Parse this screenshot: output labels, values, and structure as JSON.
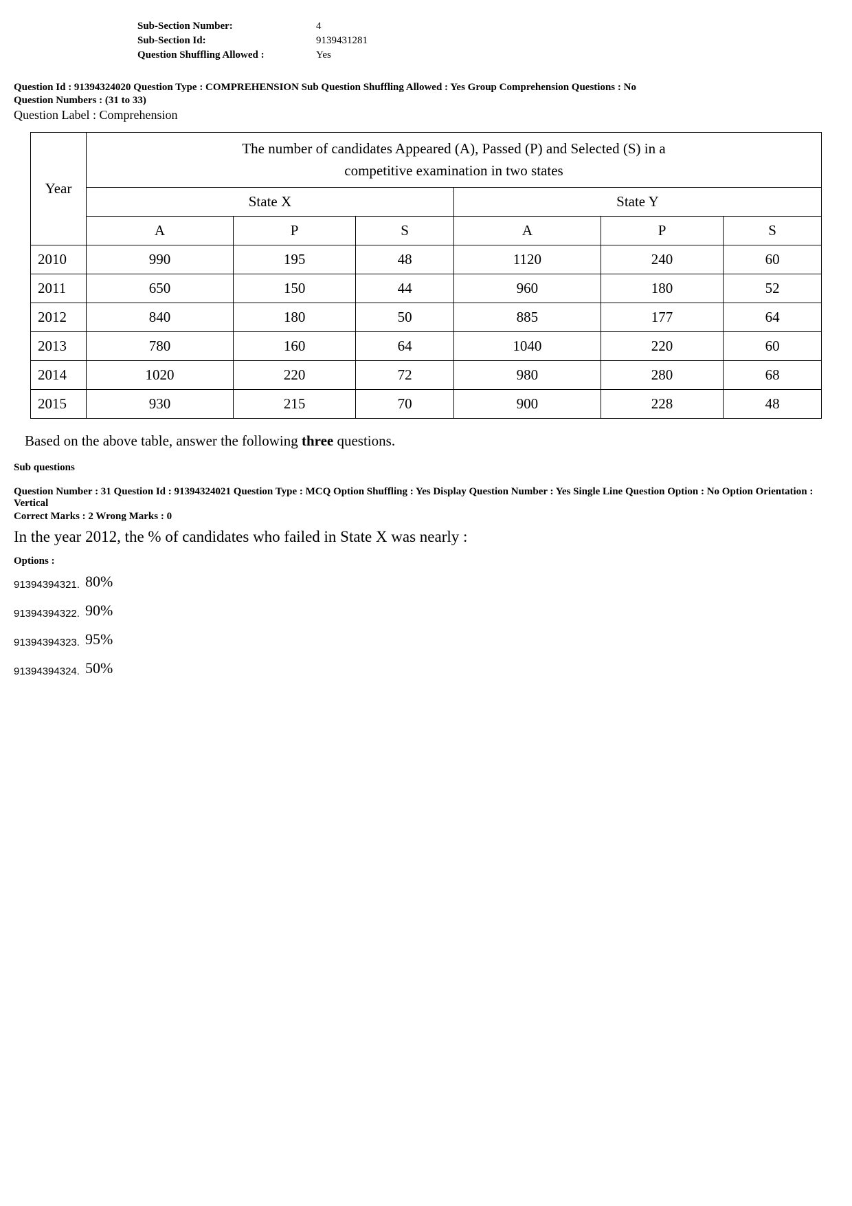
{
  "sub_section": {
    "rows": [
      {
        "label": "Sub-Section Number:",
        "value": "4"
      },
      {
        "label": "Sub-Section Id:",
        "value": "9139431281"
      },
      {
        "label": "Question Shuffling Allowed :",
        "value": "Yes"
      }
    ]
  },
  "comprehension_header": {
    "line1": "Question Id : 91394324020  Question Type : COMPREHENSION  Sub Question Shuffling Allowed : Yes  Group Comprehension Questions : No",
    "line2": "Question Numbers : (31 to 33)",
    "label": "Question Label : Comprehension"
  },
  "table": {
    "caption_line1": "The number of candidates Appeared (A), Passed (P) and Selected (S) in a",
    "caption_line2": "competitive examination in two states",
    "year_header": "Year",
    "state_x": "State X",
    "state_y": "State Y",
    "sub_headers": [
      "A",
      "P",
      "S",
      "A",
      "P",
      "S"
    ],
    "rows": [
      {
        "year": "2010",
        "cells": [
          "990",
          "195",
          "48",
          "1120",
          "240",
          "60"
        ]
      },
      {
        "year": "2011",
        "cells": [
          "650",
          "150",
          "44",
          "960",
          "180",
          "52"
        ]
      },
      {
        "year": "2012",
        "cells": [
          "840",
          "180",
          "50",
          "885",
          "177",
          "64"
        ]
      },
      {
        "year": "2013",
        "cells": [
          "780",
          "160",
          "64",
          "1040",
          "220",
          "60"
        ]
      },
      {
        "year": "2014",
        "cells": [
          "1020",
          "220",
          "72",
          "980",
          "280",
          "68"
        ]
      },
      {
        "year": "2015",
        "cells": [
          "930",
          "215",
          "70",
          "900",
          "228",
          "48"
        ]
      }
    ],
    "border_color": "#000000",
    "background_color": "#ffffff",
    "font_size": 21
  },
  "instruction_prefix": "Based on the above table, answer the following ",
  "instruction_bold": "three",
  "instruction_suffix": " questions.",
  "sub_questions_label": "Sub questions",
  "question": {
    "header_line1": "Question Number : 31  Question Id : 91394324021  Question Type : MCQ  Option Shuffling : Yes  Display Question Number : Yes  Single Line Question Option : No  Option Orientation : Vertical",
    "header_line2": "Correct Marks : 2  Wrong Marks : 0",
    "text": "In the year 2012, the % of candidates who failed in State X was nearly :",
    "options_label": "Options :",
    "options": [
      {
        "id": "91394394321.",
        "value": "80%"
      },
      {
        "id": "91394394322.",
        "value": "90%"
      },
      {
        "id": "91394394323.",
        "value": "95%"
      },
      {
        "id": "91394394324.",
        "value": "50%"
      }
    ]
  }
}
